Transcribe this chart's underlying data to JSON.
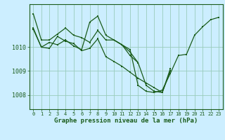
{
  "title": "Graphe pression niveau de la mer (hPa)",
  "bg_color": "#cceeff",
  "grid_color": "#99ccbb",
  "line_color": "#1a5c1a",
  "xlim": [
    -0.5,
    23.5
  ],
  "ylim": [
    1007.4,
    1011.8
  ],
  "yticks": [
    1008,
    1009,
    1010
  ],
  "xticks": [
    0,
    1,
    2,
    3,
    4,
    5,
    6,
    7,
    8,
    9,
    10,
    11,
    12,
    13,
    14,
    15,
    16,
    17,
    18,
    19,
    20,
    21,
    22,
    23
  ],
  "xlabel_fontsize": 6.5,
  "ytick_fontsize": 6,
  "xtick_fontsize": 5,
  "series": [
    {
      "x": [
        0,
        1,
        2,
        3,
        4,
        5,
        6,
        7,
        8,
        9,
        10,
        11,
        12,
        13,
        14,
        15,
        16,
        17,
        18,
        19,
        20,
        21,
        22,
        23
      ],
      "y": [
        1011.4,
        1010.3,
        1010.3,
        1010.55,
        1010.8,
        1010.5,
        1010.4,
        1010.2,
        1010.7,
        1010.3,
        1010.3,
        1010.1,
        1009.9,
        1008.4,
        1008.15,
        1008.1,
        1008.2,
        1008.9,
        1009.65,
        1009.7,
        1010.5,
        1010.85,
        1011.15,
        1011.25
      ]
    },
    {
      "x": [
        0,
        1,
        2,
        3,
        4,
        5,
        6,
        7,
        8,
        9,
        10,
        11,
        12,
        13,
        14,
        15,
        16,
        17
      ],
      "y": [
        1010.8,
        1010.0,
        1010.2,
        1010.1,
        1010.3,
        1010.05,
        1009.9,
        1011.05,
        1011.3,
        1010.5,
        1010.3,
        1010.1,
        1009.65,
        1009.35,
        1008.4,
        1008.15,
        1008.1,
        1009.1
      ]
    },
    {
      "x": [
        0,
        1,
        2,
        3,
        4,
        5,
        6,
        7,
        8,
        9,
        10,
        11,
        12,
        13,
        14,
        15,
        16,
        17
      ],
      "y": [
        1010.75,
        1010.0,
        1009.95,
        1010.45,
        1010.25,
        1010.15,
        1009.85,
        1009.95,
        1010.35,
        1009.6,
        1009.4,
        1009.2,
        1008.95,
        1008.7,
        1008.5,
        1008.3,
        1008.1,
        1009.0
      ]
    },
    {
      "x": [
        10,
        11,
        12,
        13
      ],
      "y": [
        1010.3,
        1010.1,
        1009.8,
        1009.35
      ]
    }
  ]
}
